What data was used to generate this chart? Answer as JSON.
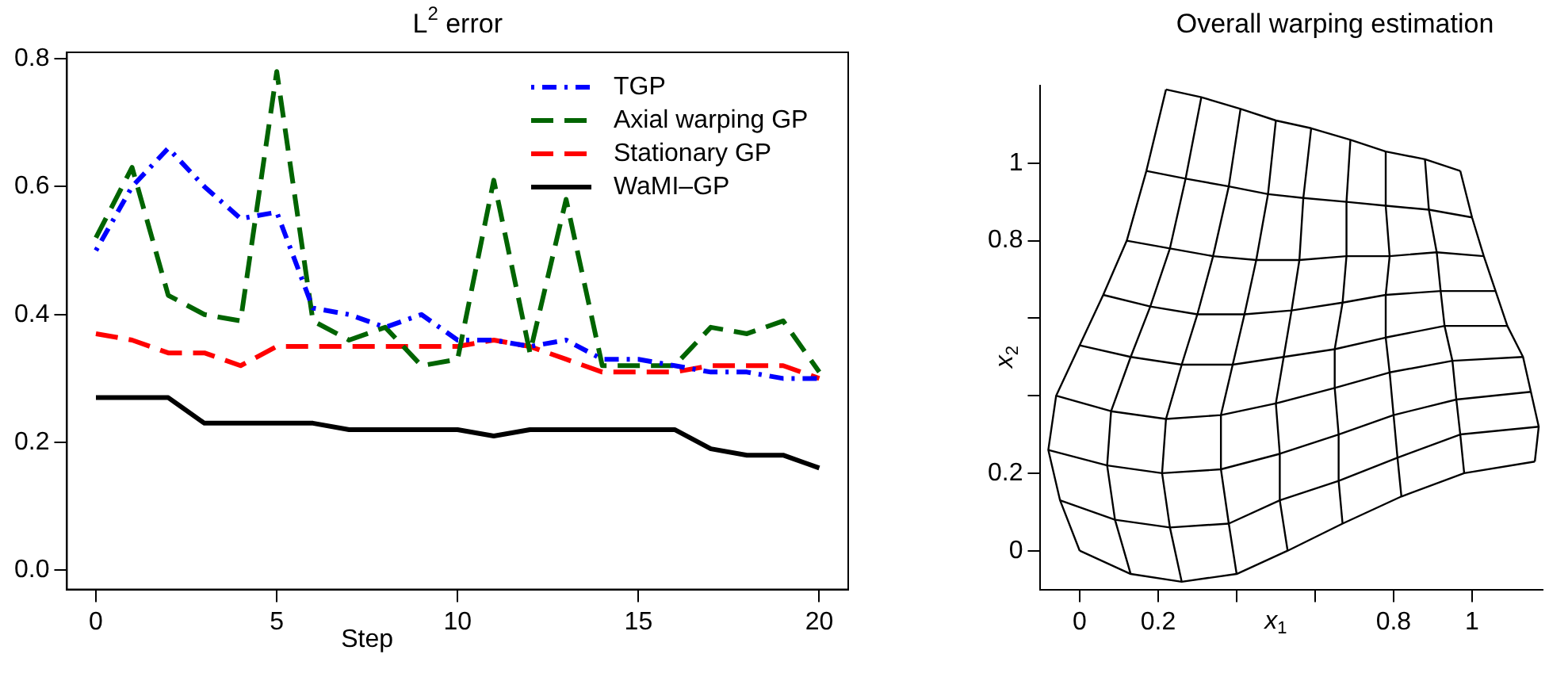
{
  "chart_data": [
    {
      "type": "line",
      "title": "L$^{2}$ error",
      "xlabel": "Step",
      "x": [
        0,
        1,
        2,
        3,
        4,
        5,
        6,
        7,
        8,
        9,
        10,
        11,
        12,
        13,
        14,
        15,
        16,
        17,
        18,
        19,
        20
      ],
      "series": [
        {
          "name": "TGP",
          "color": "#0000ff",
          "line_style": "dotted",
          "values": [
            0.5,
            0.6,
            0.66,
            0.6,
            0.55,
            0.56,
            0.41,
            0.4,
            0.38,
            0.4,
            0.36,
            0.36,
            0.35,
            0.36,
            0.33,
            0.33,
            0.32,
            0.31,
            0.31,
            0.3,
            0.3
          ]
        },
        {
          "name": "Axial warping GP",
          "color": "#006400",
          "line_style": "dashed",
          "values": [
            0.52,
            0.63,
            0.43,
            0.4,
            0.39,
            0.78,
            0.39,
            0.36,
            0.38,
            0.32,
            0.33,
            0.61,
            0.34,
            0.58,
            0.32,
            0.32,
            0.32,
            0.38,
            0.37,
            0.39,
            0.31
          ]
        },
        {
          "name": "Stationary GP",
          "color": "#ff0000",
          "line_style": "dashed",
          "values": [
            0.37,
            0.36,
            0.34,
            0.34,
            0.32,
            0.35,
            0.35,
            0.35,
            0.35,
            0.35,
            0.35,
            0.36,
            0.35,
            0.33,
            0.31,
            0.31,
            0.31,
            0.32,
            0.32,
            0.32,
            0.3
          ]
        },
        {
          "name": "WaMI–GP",
          "color": "#000000",
          "line_style": "solid",
          "values": [
            0.27,
            0.27,
            0.27,
            0.23,
            0.23,
            0.23,
            0.23,
            0.22,
            0.22,
            0.22,
            0.22,
            0.21,
            0.22,
            0.22,
            0.22,
            0.22,
            0.22,
            0.19,
            0.18,
            0.18,
            0.16
          ]
        }
      ],
      "xlim": [
        -0.8,
        20.8
      ],
      "xticks": [
        0,
        5,
        10,
        15,
        20
      ],
      "ylim": [
        -0.03,
        0.81
      ],
      "yticks": [
        {
          "value": 0,
          "label": "0.0"
        },
        {
          "value": 0.2,
          "label": "0.2"
        },
        {
          "value": 0.4,
          "label": "0.4"
        },
        {
          "value": 0.6,
          "label": "0.6"
        },
        {
          "value": 0.8,
          "label": "0.8"
        }
      ],
      "grid": false,
      "legend": "top right"
    },
    {
      "type": "line",
      "title": "Overall warping estimation",
      "xlabel": "x$_{1}$",
      "ylabel": "x$_{2}$",
      "series": [
        {
          "color": "#000000",
          "x": [
            0,
            -0.05,
            -0.08,
            -0.06,
            0,
            0.06,
            0.12,
            0.17,
            0.22
          ],
          "values": [
            0,
            0.13,
            0.26,
            0.4,
            0.53,
            0.66,
            0.8,
            0.98,
            1.19
          ]
        },
        {
          "color": "#000000",
          "x": [
            0.13,
            0.09,
            0.07,
            0.08,
            0.13,
            0.18,
            0.23,
            0.27,
            0.31
          ],
          "values": [
            -0.06,
            0.08,
            0.22,
            0.36,
            0.5,
            0.63,
            0.78,
            0.96,
            1.17
          ]
        },
        {
          "color": "#000000",
          "x": [
            0.26,
            0.23,
            0.21,
            0.22,
            0.26,
            0.3,
            0.34,
            0.38,
            0.41
          ],
          "values": [
            -0.08,
            0.06,
            0.2,
            0.34,
            0.48,
            0.61,
            0.76,
            0.94,
            1.14
          ]
        },
        {
          "color": "#000000",
          "x": [
            0.4,
            0.38,
            0.36,
            0.36,
            0.39,
            0.42,
            0.45,
            0.48,
            0.5
          ],
          "values": [
            -0.06,
            0.07,
            0.21,
            0.35,
            0.48,
            0.61,
            0.75,
            0.92,
            1.11
          ]
        },
        {
          "color": "#000000",
          "x": [
            0.53,
            0.51,
            0.51,
            0.5,
            0.52,
            0.54,
            0.56,
            0.57,
            0.59
          ],
          "values": [
            0,
            0.13,
            0.25,
            0.38,
            0.5,
            0.62,
            0.75,
            0.91,
            1.09
          ]
        },
        {
          "color": "#000000",
          "x": [
            0.67,
            0.66,
            0.66,
            0.65,
            0.65,
            0.67,
            0.68,
            0.68,
            0.69
          ],
          "values": [
            0.07,
            0.18,
            0.3,
            0.42,
            0.52,
            0.64,
            0.76,
            0.9,
            1.06
          ]
        },
        {
          "color": "#000000",
          "x": [
            0.82,
            0.81,
            0.8,
            0.79,
            0.78,
            0.78,
            0.79,
            0.78,
            0.78
          ],
          "values": [
            0.14,
            0.24,
            0.35,
            0.46,
            0.55,
            0.66,
            0.76,
            0.89,
            1.03
          ]
        },
        {
          "color": "#000000",
          "x": [
            0.98,
            0.97,
            0.96,
            0.95,
            0.93,
            0.92,
            0.91,
            0.89,
            0.88
          ],
          "values": [
            0.2,
            0.3,
            0.39,
            0.49,
            0.58,
            0.67,
            0.77,
            0.88,
            1.01
          ]
        },
        {
          "color": "#000000",
          "x": [
            1.16,
            1.17,
            1.15,
            1.13,
            1.09,
            1.06,
            1.03,
            1.0,
            0.97
          ],
          "values": [
            0.23,
            0.32,
            0.41,
            0.5,
            0.58,
            0.67,
            0.76,
            0.86,
            0.98
          ]
        },
        {
          "color": "#000000",
          "x": [
            0,
            0.13,
            0.26,
            0.4,
            0.53,
            0.67,
            0.82,
            0.98,
            1.16
          ],
          "values": [
            0,
            -0.06,
            -0.08,
            -0.06,
            0,
            0.07,
            0.14,
            0.2,
            0.23
          ]
        },
        {
          "color": "#000000",
          "x": [
            -0.05,
            0.09,
            0.23,
            0.38,
            0.51,
            0.66,
            0.81,
            0.97,
            1.17
          ],
          "values": [
            0.13,
            0.08,
            0.06,
            0.07,
            0.13,
            0.18,
            0.24,
            0.3,
            0.32
          ]
        },
        {
          "color": "#000000",
          "x": [
            -0.08,
            0.07,
            0.21,
            0.36,
            0.51,
            0.66,
            0.8,
            0.96,
            1.15
          ],
          "values": [
            0.26,
            0.22,
            0.2,
            0.21,
            0.25,
            0.3,
            0.35,
            0.39,
            0.41
          ]
        },
        {
          "color": "#000000",
          "x": [
            -0.06,
            0.08,
            0.22,
            0.36,
            0.5,
            0.65,
            0.79,
            0.95,
            1.13
          ],
          "values": [
            0.4,
            0.36,
            0.34,
            0.35,
            0.38,
            0.42,
            0.46,
            0.49,
            0.5
          ]
        },
        {
          "color": "#000000",
          "x": [
            0,
            0.13,
            0.26,
            0.39,
            0.52,
            0.65,
            0.78,
            0.93,
            1.09
          ],
          "values": [
            0.53,
            0.5,
            0.48,
            0.48,
            0.5,
            0.52,
            0.55,
            0.58,
            0.58
          ]
        },
        {
          "color": "#000000",
          "x": [
            0.06,
            0.18,
            0.3,
            0.42,
            0.54,
            0.67,
            0.78,
            0.92,
            1.06
          ],
          "values": [
            0.66,
            0.63,
            0.61,
            0.61,
            0.62,
            0.64,
            0.66,
            0.67,
            0.67
          ]
        },
        {
          "color": "#000000",
          "x": [
            0.12,
            0.23,
            0.34,
            0.45,
            0.56,
            0.68,
            0.79,
            0.91,
            1.03
          ],
          "values": [
            0.8,
            0.78,
            0.76,
            0.75,
            0.75,
            0.76,
            0.76,
            0.77,
            0.76
          ]
        },
        {
          "color": "#000000",
          "x": [
            0.17,
            0.27,
            0.38,
            0.48,
            0.57,
            0.68,
            0.78,
            0.89,
            1.0
          ],
          "values": [
            0.98,
            0.96,
            0.94,
            0.92,
            0.91,
            0.9,
            0.89,
            0.88,
            0.86
          ]
        },
        {
          "color": "#000000",
          "x": [
            0.22,
            0.31,
            0.41,
            0.5,
            0.59,
            0.69,
            0.78,
            0.88,
            0.97
          ],
          "values": [
            1.19,
            1.17,
            1.14,
            1.11,
            1.09,
            1.06,
            1.03,
            1.01,
            0.98
          ]
        }
      ],
      "xlim": [
        -0.1,
        1.18
      ],
      "xticks": [
        0,
        0.2,
        {
          "value": 0.4,
          "label": null
        },
        {
          "value": 0.6,
          "label": null
        },
        0.8,
        1
      ],
      "ylim": [
        -0.1,
        1.2
      ],
      "yticks": [
        0,
        0.2,
        {
          "value": 0.4,
          "label": null
        },
        {
          "value": 0.6,
          "label": null
        },
        0.8,
        1
      ]
    }
  ]
}
